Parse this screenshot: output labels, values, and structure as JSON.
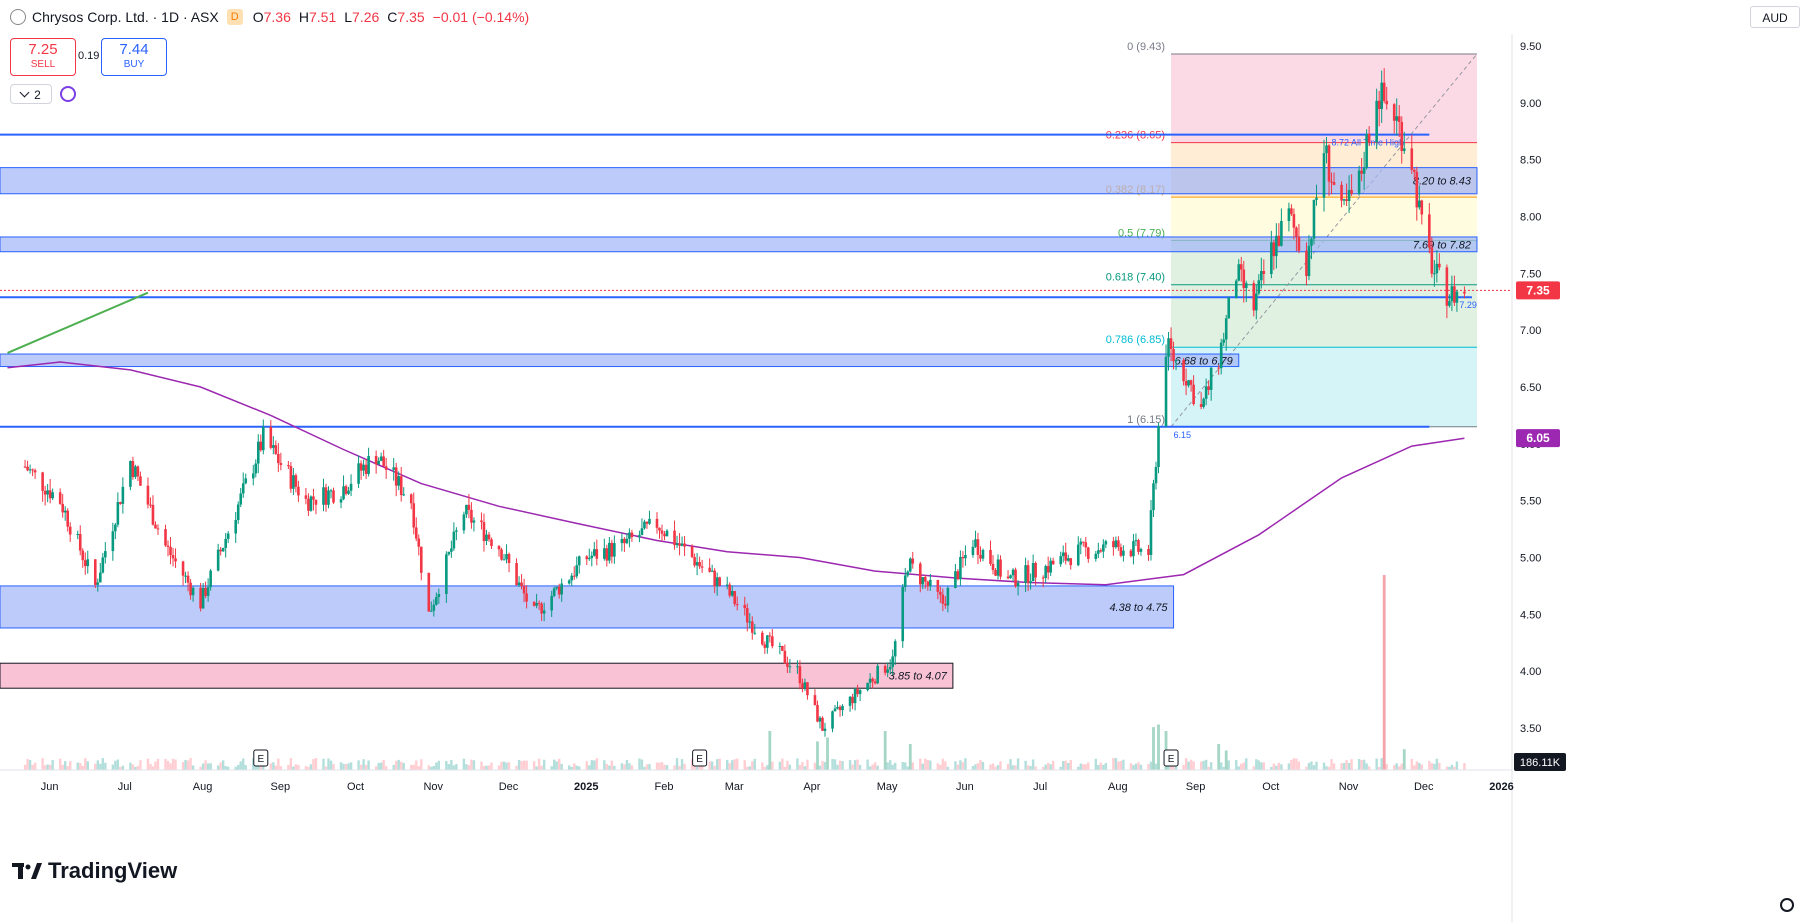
{
  "header": {
    "title": "Chrysos Corp. Ltd. · 1D · ASX",
    "badge": "D",
    "ohlc": [
      {
        "k": "O",
        "v": "7.36"
      },
      {
        "k": "H",
        "v": "7.51"
      },
      {
        "k": "L",
        "v": "7.26"
      },
      {
        "k": "C",
        "v": "7.35"
      }
    ],
    "change": "−0.01 (−0.14%)"
  },
  "trade": {
    "sell_price": "7.25",
    "sell_label": "SELL",
    "buy_price": "7.44",
    "buy_label": "BUY",
    "spread": "0.19"
  },
  "indicators_count": "2",
  "currency": "AUD",
  "logo_text": "TradingView",
  "colors": {
    "up": "#089981",
    "down": "#f23645",
    "zone_blue": "#2962ff",
    "zone_pink": "#f06292",
    "ma": "#9c27b0",
    "price_tag": "#f23645",
    "ma_tag": "#9c27b0"
  },
  "chart_data": {
    "type": "candlestick",
    "symbol": "Chrysos Corp. Ltd.",
    "interval": "1D",
    "exchange": "ASX",
    "y_axis": {
      "ticks": [
        "9.50",
        "9.00",
        "8.50",
        "8.00",
        "7.50",
        "7.00",
        "6.50",
        "6.00",
        "5.50",
        "5.00",
        "4.50",
        "4.00",
        "3.50"
      ],
      "range": [
        3.25,
        9.7
      ]
    },
    "x_axis": {
      "ticks": [
        "Jun",
        "Jul",
        "Aug",
        "Sep",
        "Oct",
        "Nov",
        "Dec",
        "2025",
        "Feb",
        "Mar",
        "Apr",
        "May",
        "Jun",
        "Jul",
        "Aug",
        "Sep",
        "Oct",
        "Nov",
        "Dec",
        "2026"
      ],
      "bold_ticks": [
        "2025",
        "2026"
      ]
    },
    "price_series": [
      [
        "2024-05-27",
        5.8
      ],
      [
        "2024-06-10",
        5.5
      ],
      [
        "2024-06-24",
        4.75
      ],
      [
        "2024-07-08",
        5.85
      ],
      [
        "2024-07-22",
        5.1
      ],
      [
        "2024-08-05",
        4.6
      ],
      [
        "2024-08-19",
        5.4
      ],
      [
        "2024-08-30",
        6.05
      ],
      [
        "2024-09-16",
        5.5
      ],
      [
        "2024-09-30",
        5.6
      ],
      [
        "2024-10-14",
        5.9
      ],
      [
        "2024-10-28",
        5.5
      ],
      [
        "2024-11-04",
        4.5
      ],
      [
        "2024-11-18",
        5.4
      ],
      [
        "2024-12-02",
        5.1
      ],
      [
        "2024-12-16",
        4.5
      ],
      [
        "2025-01-06",
        5.0
      ],
      [
        "2025-01-20",
        5.1
      ],
      [
        "2025-02-03",
        5.3
      ],
      [
        "2025-02-17",
        5.0
      ],
      [
        "2025-03-03",
        4.7
      ],
      [
        "2025-03-17",
        4.3
      ],
      [
        "2025-03-31",
        4.0
      ],
      [
        "2025-04-10",
        3.5
      ],
      [
        "2025-04-28",
        3.9
      ],
      [
        "2025-05-08",
        4.1
      ],
      [
        "2025-05-14",
        4.95
      ],
      [
        "2025-05-28",
        4.6
      ],
      [
        "2025-06-09",
        5.15
      ],
      [
        "2025-06-23",
        4.8
      ],
      [
        "2025-07-07",
        4.9
      ],
      [
        "2025-07-21",
        5.05
      ],
      [
        "2025-08-04",
        5.1
      ],
      [
        "2025-08-18",
        5.05
      ],
      [
        "2025-08-22",
        6.15
      ],
      [
        "2025-08-25",
        6.85
      ],
      [
        "2025-09-02",
        6.6
      ],
      [
        "2025-09-08",
        6.3
      ],
      [
        "2025-09-15",
        6.75
      ],
      [
        "2025-09-22",
        7.5
      ],
      [
        "2025-09-29",
        7.2
      ],
      [
        "2025-10-06",
        7.7
      ],
      [
        "2025-10-13",
        8.0
      ],
      [
        "2025-10-20",
        7.6
      ],
      [
        "2025-10-27",
        8.6
      ],
      [
        "2025-11-03",
        8.0
      ],
      [
        "2025-11-10",
        8.3
      ],
      [
        "2025-11-17",
        9.1
      ],
      [
        "2025-11-24",
        8.9
      ],
      [
        "2025-12-01",
        8.5
      ],
      [
        "2025-12-05",
        7.9
      ],
      [
        "2025-12-10",
        7.5
      ],
      [
        "2025-12-16",
        7.3
      ],
      [
        "2025-12-22",
        7.35
      ]
    ],
    "last": {
      "close": 7.35,
      "tag": "7.35"
    },
    "moving_average": {
      "tag": "6.05",
      "points": [
        [
          "2024-05-20",
          6.67
        ],
        [
          "2024-06-10",
          6.72
        ],
        [
          "2024-07-08",
          6.65
        ],
        [
          "2024-08-05",
          6.5
        ],
        [
          "2024-09-02",
          6.25
        ],
        [
          "2024-10-01",
          5.95
        ],
        [
          "2024-11-01",
          5.65
        ],
        [
          "2024-12-02",
          5.45
        ],
        [
          "2025-01-02",
          5.3
        ],
        [
          "2025-02-03",
          5.15
        ],
        [
          "2025-03-03",
          5.05
        ],
        [
          "2025-04-01",
          5.0
        ],
        [
          "2025-05-01",
          4.88
        ],
        [
          "2025-06-02",
          4.82
        ],
        [
          "2025-07-01",
          4.78
        ],
        [
          "2025-08-01",
          4.76
        ],
        [
          "2025-09-01",
          4.85
        ],
        [
          "2025-10-01",
          5.2
        ],
        [
          "2025-11-03",
          5.7
        ],
        [
          "2025-12-01",
          5.98
        ],
        [
          "2025-12-22",
          6.05
        ]
      ]
    },
    "fibonacci": {
      "levels": [
        {
          "ratio": 0,
          "price": 9.43,
          "label": "0 (9.43)"
        },
        {
          "ratio": 0.236,
          "price": 8.65,
          "label": "0.236 (8.65)"
        },
        {
          "ratio": 0.382,
          "price": 8.17,
          "label": "0.382 (8.17)"
        },
        {
          "ratio": 0.5,
          "price": 7.79,
          "label": "0.5 (7.79)"
        },
        {
          "ratio": 0.618,
          "price": 7.4,
          "label": "0.618 (7.40)"
        },
        {
          "ratio": 0.786,
          "price": 6.85,
          "label": "0.786 (6.85)"
        },
        {
          "ratio": 1,
          "price": 6.15,
          "label": "1 (6.15)"
        }
      ],
      "start_date": "2025-08-27",
      "end_date": "2025-12-27",
      "level_fills": [
        "#f8bbd0",
        "#ffe0b2",
        "#fff9c4",
        "#c8e6c9",
        "#c8e6c9",
        "#b2ebf2",
        "#e0e0e0"
      ]
    },
    "zones": [
      {
        "label": "8.20 to 8.43",
        "low": 8.2,
        "high": 8.43,
        "end_date": "2025-12-27",
        "color": "blue"
      },
      {
        "label": "7.69 to 7.82",
        "low": 7.69,
        "high": 7.82,
        "end_date": "2025-12-27",
        "color": "blue"
      },
      {
        "label": "6.68 to 6.79",
        "low": 6.68,
        "high": 6.79,
        "end_date": "2025-09-23",
        "color": "blue"
      },
      {
        "label": "4.38 to 4.75",
        "low": 4.38,
        "high": 4.75,
        "end_date": "2025-08-28",
        "color": "blue"
      },
      {
        "label": "3.85 to 4.07",
        "low": 3.85,
        "high": 4.07,
        "end_date": "2025-06-01",
        "color": "pink"
      }
    ],
    "horizontal_lines": [
      {
        "price": 8.72,
        "label": "8.72 All Time High",
        "label_start_date": "2025-10-30"
      },
      {
        "price": 7.29,
        "label": "7.29",
        "label_start_date": "2025-12-20"
      },
      {
        "price": 6.15,
        "label": "6.15",
        "label_start_date": "2025-08-28"
      }
    ],
    "trendline": {
      "from": [
        "2024-05-20",
        6.8
      ],
      "to": [
        "2024-07-15",
        7.33
      ]
    },
    "volume": {
      "tag": "186.11K",
      "spikes": [
        [
          "2025-03-20",
          0.3
        ],
        [
          "2025-04-08",
          0.22
        ],
        [
          "2025-04-12",
          0.25
        ],
        [
          "2025-05-05",
          0.3
        ],
        [
          "2025-05-15",
          0.2
        ],
        [
          "2025-08-20",
          0.33
        ],
        [
          "2025-08-22",
          0.35
        ],
        [
          "2025-08-25",
          0.3
        ],
        [
          "2025-09-15",
          0.2
        ],
        [
          "2025-09-18",
          0.15
        ],
        [
          "2025-11-20",
          1.5
        ],
        [
          "2025-11-28",
          0.16
        ]
      ]
    },
    "event_markers": [
      {
        "date": "2024-08-29",
        "glyph": "E",
        "type": "earnings"
      },
      {
        "date": "2025-02-20",
        "glyph": "E",
        "type": "earnings"
      },
      {
        "date": "2025-08-27",
        "glyph": "E",
        "type": "earnings"
      }
    ]
  }
}
